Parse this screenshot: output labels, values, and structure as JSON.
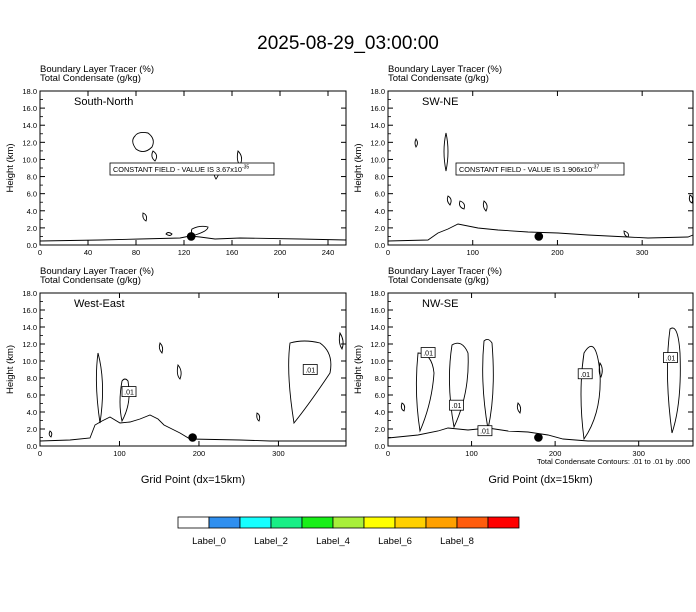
{
  "title": "2025-08-29_03:00:00",
  "footnote": "Total Condensate Contours: .01 to .01 by .000",
  "colorbar": {
    "colors": [
      "#ffffff",
      "#2f8fef",
      "#16ffff",
      "#18ef86",
      "#18ef18",
      "#a8ef3a",
      "#ffff00",
      "#ffd000",
      "#ffa000",
      "#ff5c0c",
      "#ff0000"
    ],
    "labels": [
      "Label_0",
      "Label_2",
      "Label_4",
      "Label_6",
      "Label_8"
    ]
  },
  "chart_data": [
    {
      "type": "contour",
      "panel": "South-North",
      "header_line1": "Boundary Layer Tracer   (%)",
      "header_line2": "Total Condensate   (g/kg)",
      "ylabel": "Height (km)",
      "xlabel": "",
      "xlim": [
        0,
        255
      ],
      "ylim": [
        0,
        18
      ],
      "xticks": [
        "0",
        "40",
        "80",
        "120",
        "160",
        "200",
        "240"
      ],
      "yticks": [
        "0.0",
        "2.0",
        "4.0",
        "6.0",
        "8.0",
        "10.0",
        "12.0",
        "14.0",
        "16.0",
        "18.0"
      ],
      "constant_field_note": "CONSTANT FIELD - VALUE IS 3.67x10",
      "constant_field_exp": "-35",
      "marker_x": 126,
      "contour_labels": []
    },
    {
      "type": "contour",
      "panel": "SW-NE",
      "header_line1": "Boundary Layer Tracer   (%)",
      "header_line2": "Total Condensate   (g/kg)",
      "ylabel": "Height (km)",
      "xlabel": "",
      "xlim": [
        0,
        360
      ],
      "ylim": [
        0,
        18
      ],
      "xticks": [
        "0",
        "100",
        "200",
        "300"
      ],
      "yticks": [
        "0.0",
        "2.0",
        "4.0",
        "6.0",
        "8.0",
        "10.0",
        "12.0",
        "14.0",
        "16.0",
        "18.0"
      ],
      "constant_field_note": "CONSTANT FIELD - VALUE IS 1.906x10",
      "constant_field_exp": "-37",
      "marker_x": 178,
      "contour_labels": []
    },
    {
      "type": "contour",
      "panel": "West-East",
      "header_line1": "Boundary Layer Tracer   (%)",
      "header_line2": "Total Condensate   (g/kg)",
      "ylabel": "Height (km)",
      "xlabel": "Grid Point (dx=15km)",
      "xlim": [
        0,
        385
      ],
      "ylim": [
        0,
        18
      ],
      "xticks": [
        "0",
        "100",
        "200",
        "300"
      ],
      "yticks": [
        "0.0",
        "2.0",
        "4.0",
        "6.0",
        "8.0",
        "10.0",
        "12.0",
        "14.0",
        "16.0",
        "18.0"
      ],
      "constant_field_note": "",
      "constant_field_exp": "",
      "marker_x": 192,
      "contour_labels": [
        {
          "x": 112,
          "y": 6.4,
          "text": ".01"
        },
        {
          "x": 340,
          "y": 9.0,
          "text": ".01"
        }
      ]
    },
    {
      "type": "contour",
      "panel": "NW-SE",
      "header_line1": "Boundary Layer Tracer   (%)",
      "header_line2": "Total Condensate   (g/kg)",
      "ylabel": "Height (km)",
      "xlabel": "Grid Point (dx=15km)",
      "xlim": [
        0,
        365
      ],
      "ylim": [
        0,
        18
      ],
      "xticks": [
        "0",
        "100",
        "200",
        "300"
      ],
      "yticks": [
        "0.0",
        "2.0",
        "4.0",
        "6.0",
        "8.0",
        "10.0",
        "12.0",
        "14.0",
        "16.0",
        "18.0"
      ],
      "constant_field_note": "",
      "constant_field_exp": "",
      "marker_x": 180,
      "contour_labels": [
        {
          "x": 48,
          "y": 11.0,
          "text": ".01"
        },
        {
          "x": 82,
          "y": 4.8,
          "text": ".01"
        },
        {
          "x": 116,
          "y": 1.8,
          "text": ".01"
        },
        {
          "x": 236,
          "y": 8.5,
          "text": ".01"
        },
        {
          "x": 338,
          "y": 10.4,
          "text": ".01"
        }
      ]
    }
  ]
}
